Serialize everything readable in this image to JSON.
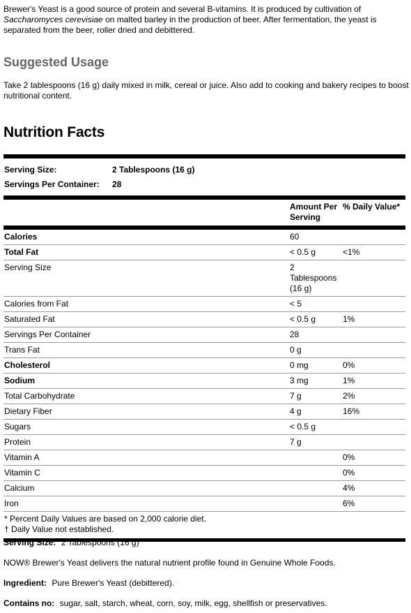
{
  "intro": {
    "part1": "Brewer's Yeast is a good source of protein and several B-vitamins.  It is produced by cultivation of ",
    "italic": "Saccharomyces cerevisiae",
    "part2": " on malted barley in the production of beer.  After fermentation, the yeast is separated from the beer, roller dried and debittered."
  },
  "usage": {
    "heading": "Suggested Usage",
    "text": "Take 2 tablespoons (16 g) daily mixed in milk, cereal or juice. Also add to cooking and bakery recipes to boost nutritional content."
  },
  "nutrition": {
    "title": "Nutrition Facts",
    "serving_size": {
      "label": "Serving Size:",
      "value": "2 Tablespoons (16 g)"
    },
    "servings_per_container": {
      "label": "Servings Per Container:",
      "value": "28"
    },
    "headers": [
      "Amount Per Serving",
      "% Daily Value*"
    ],
    "rows": [
      {
        "name": "Calories",
        "amount": "60",
        "dv": "",
        "bold": true
      },
      {
        "name": "Total Fat",
        "amount": "< 0.5 g",
        "dv": "<1%",
        "bold": true
      },
      {
        "name": "Serving Size",
        "amount": "2 Tablespoons (16 g)",
        "dv": "",
        "bold": false
      },
      {
        "name": "Calories from Fat",
        "amount": "< 5",
        "dv": "",
        "bold": false
      },
      {
        "name": "Saturated Fat",
        "amount": "< 0.5 g",
        "dv": "1%",
        "bold": false
      },
      {
        "name": "Servings Per Container",
        "amount": "28",
        "dv": "",
        "bold": false
      },
      {
        "name": "Trans Fat",
        "amount": "0 g",
        "dv": "",
        "bold": false
      },
      {
        "name": "Cholesterol",
        "amount": "0 mg",
        "dv": "0%",
        "bold": true
      },
      {
        "name": "Sodium",
        "amount": "3 mg",
        "dv": "1%",
        "bold": true
      },
      {
        "name": "Total Carbohydrate",
        "amount": "7 g",
        "dv": "2%",
        "bold": false
      },
      {
        "name": "Dietary Fiber",
        "amount": "4 g",
        "dv": "16%",
        "bold": false
      },
      {
        "name": "Sugars",
        "amount": "< 0.5 g",
        "dv": "",
        "bold": false
      },
      {
        "name": "Protein",
        "amount": "7 g",
        "dv": "",
        "bold": false
      },
      {
        "name": "Vitamin A",
        "amount": "",
        "dv": "0%",
        "bold": false
      },
      {
        "name": "Vitamin C",
        "amount": "",
        "dv": "0%",
        "bold": false
      },
      {
        "name": "Calcium",
        "amount": "",
        "dv": "4%",
        "bold": false
      },
      {
        "name": "Iron",
        "amount": "",
        "dv": "6%",
        "bold": false
      }
    ],
    "footnotes": [
      "* Percent Daily Values are based on 2,000 calorie diet.",
      "† Daily Value not established."
    ]
  },
  "details": {
    "serving_size": {
      "label": "Serving Size:",
      "value": "2 Tablespoons (16 g)"
    },
    "statement": "NOW® Brewer's Yeast delivers the natural nutrient profile found in Genuine Whole Foods.",
    "ingredient": {
      "label": "Ingredient:",
      "value": "Pure Brewer's Yeast (debittered)."
    },
    "contains_no": {
      "label": "Contains no:",
      "value": "sugar, salt, starch, wheat, corn, soy, milk, egg, shellfish or preservatives."
    }
  }
}
